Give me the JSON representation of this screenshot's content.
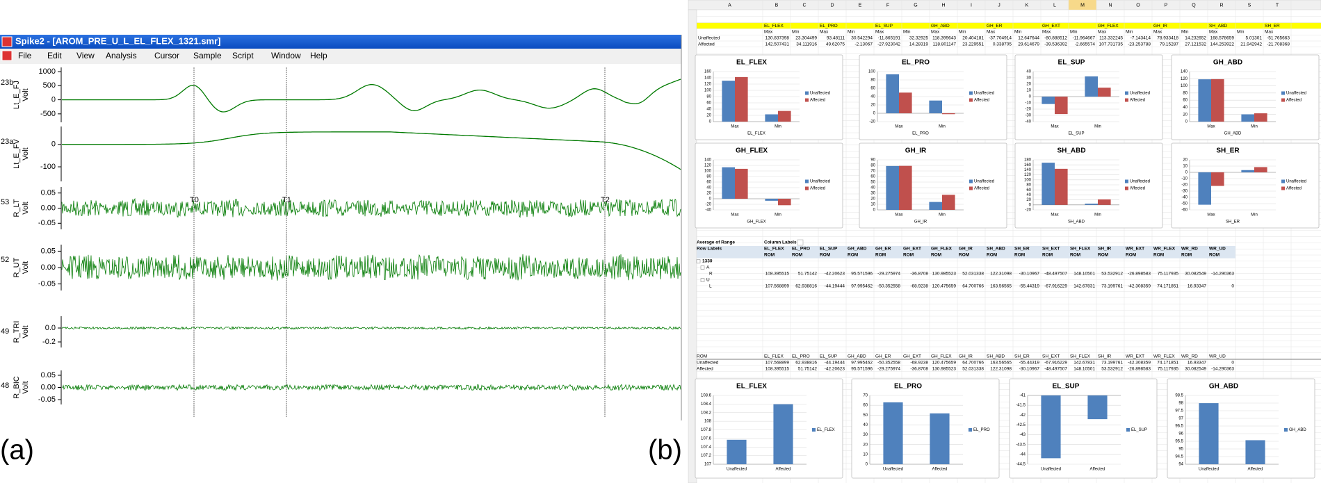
{
  "panels": [
    "(a)",
    "(b)"
  ],
  "spike": {
    "title": "Spike2 - [AROM_PRE_U_L_EL_FLEX_1321.smr]",
    "menu": [
      "File",
      "Edit",
      "View",
      "Analysis",
      "Cursor",
      "Sample",
      "Script",
      "Window",
      "Help"
    ],
    "cursors": [
      "T0",
      "T1",
      "T2"
    ],
    "channels": [
      {
        "id": "23b",
        "name": "Lt_E_FJ",
        "unit": "Volt",
        "ylim": [
          -800,
          1150
        ],
        "yticks": [
          1000,
          500,
          0,
          -500
        ]
      },
      {
        "id": "23a",
        "name": "Lt_E_FV",
        "unit": "Volt",
        "ylim": [
          -165,
          80
        ],
        "yticks": [
          0,
          -100
        ]
      },
      {
        "id": "53",
        "name": "R_LT",
        "unit": "Volt",
        "ylim": [
          -0.07,
          0.07
        ],
        "yticks": [
          0.05,
          {
            "value": 0,
            "label": "0.00"
          },
          -0.05
        ]
      },
      {
        "id": "52",
        "name": "R_UT",
        "unit": "Volt",
        "ylim": [
          -0.07,
          0.07
        ],
        "yticks": [
          0.05,
          {
            "value": 0,
            "label": "0.00"
          },
          -0.05
        ]
      },
      {
        "id": "49",
        "name": "R_TRI",
        "unit": "Volt",
        "ylim": [
          -0.28,
          0.17
        ],
        "yticks": [
          {
            "value": 0,
            "label": "0.0"
          },
          -0.2
        ]
      },
      {
        "id": "48",
        "name": "R_BIC",
        "unit": "Volt",
        "ylim": [
          -0.07,
          0.07
        ],
        "yticks": [
          0.05,
          {
            "value": 0,
            "label": "0.00"
          },
          -0.05
        ]
      }
    ]
  },
  "sheet": {
    "columns": [
      "A",
      "B",
      "C",
      "D",
      "E",
      "F",
      "G",
      "H",
      "I",
      "J",
      "K",
      "L",
      "M",
      "N",
      "O",
      "P",
      "Q",
      "R",
      "S",
      "T"
    ],
    "row_numbers": [
      2,
      3,
      4,
      5,
      6,
      7,
      8,
      9,
      10,
      11,
      12,
      13,
      14,
      15,
      16,
      17,
      18,
      19,
      20,
      21,
      22,
      23,
      24,
      25,
      26,
      27,
      28,
      29,
      30,
      31,
      32,
      33,
      34,
      35,
      36,
      37,
      38,
      39,
      40,
      41,
      42,
      43,
      44,
      45,
      46,
      47,
      48,
      49,
      50,
      51,
      52,
      53,
      54,
      55,
      56,
      57,
      58,
      59,
      60,
      61,
      62,
      63,
      64,
      65,
      66,
      67,
      68,
      69,
      70,
      71,
      72,
      73,
      74,
      75,
      76
    ],
    "table": {
      "headers": [
        "EL_FLEX",
        "EL_PRO",
        "EL_SUP",
        "GH_ABD",
        "GH_ER",
        "GH_EXT",
        "GH_FLEX",
        "GH_IR",
        "SH_ABD",
        "SH_ER"
      ],
      "subheaders": [
        "Max",
        "Min",
        "Max",
        "Min",
        "Max",
        "Min",
        "Max",
        "Min",
        "Max",
        "Min",
        "Max",
        "Min",
        "Max",
        "Min",
        "Max",
        "Min",
        "Max",
        "Min",
        "Max"
      ],
      "rows": [
        {
          "label": "Unaffected",
          "values": [
            130.837398,
            23.304499,
            93.48111,
            30.542294,
            -11.865191,
            32.32925,
            118.399643,
            20.404181,
            -37.704914,
            12.647644,
            -80.888512,
            -11.964667,
            113.332245,
            -7.143414,
            78.933418,
            14.232652,
            168.578659,
            5.01301,
            -51.765663
          ]
        },
        {
          "label": "Affected",
          "values": [
            142.507431,
            34.111916,
            49.62075,
            -2.13067,
            -27.923042,
            14.28319,
            118.801147,
            23.229551,
            0.338705,
            29.614679,
            -39.536392,
            -2.665574,
            107.731735,
            -23.253788,
            79.15287,
            27.121532,
            144.253922,
            21.942942,
            -21.708368
          ]
        }
      ]
    },
    "top_charts": [
      {
        "type": "bar",
        "title": "EL_FLEX",
        "xlabel": "EL_FLEX",
        "categories": [
          "Max",
          "Min"
        ],
        "ylim": [
          0,
          160
        ],
        "yticks": [
          0,
          20,
          40,
          60,
          80,
          100,
          120,
          140,
          160
        ],
        "series": [
          {
            "name": "Unaffected",
            "color": "#4f81bd",
            "values": [
              130.837398,
              23.304499
            ]
          },
          {
            "name": "Affected",
            "color": "#c0504d",
            "values": [
              142.507431,
              34.111916
            ]
          }
        ]
      },
      {
        "type": "bar",
        "title": "EL_PRO",
        "xlabel": "EL_PRO",
        "categories": [
          "Max",
          "Min"
        ],
        "ylim": [
          -20,
          100
        ],
        "yticks": [
          -20,
          0,
          20,
          40,
          60,
          80,
          100
        ],
        "series": [
          {
            "name": "Unaffected",
            "color": "#4f81bd",
            "values": [
              93.48111,
              30.542294
            ]
          },
          {
            "name": "Affected",
            "color": "#c0504d",
            "values": [
              49.62075,
              -2.13067
            ]
          }
        ]
      },
      {
        "type": "bar",
        "title": "EL_SUP",
        "xlabel": "EL_SUP",
        "categories": [
          "Max",
          "Min"
        ],
        "ylim": [
          -40,
          40
        ],
        "yticks": [
          -40,
          -30,
          -20,
          -10,
          0,
          10,
          20,
          30,
          40
        ],
        "series": [
          {
            "name": "Unaffected",
            "color": "#4f81bd",
            "values": [
              -11.865191,
              32.32925
            ]
          },
          {
            "name": "Affected",
            "color": "#c0504d",
            "values": [
              -27.923042,
              14.28319
            ]
          }
        ]
      },
      {
        "type": "bar",
        "title": "GH_ABD",
        "xlabel": "GH_ABD",
        "categories": [
          "Max",
          "Min"
        ],
        "ylim": [
          0,
          140
        ],
        "yticks": [
          0,
          20,
          40,
          60,
          80,
          100,
          120,
          140
        ],
        "series": [
          {
            "name": "Unaffected",
            "color": "#4f81bd",
            "values": [
              118.399643,
              20.404181
            ]
          },
          {
            "name": "Affected",
            "color": "#c0504d",
            "values": [
              118.801147,
              23.229551
            ]
          }
        ]
      },
      {
        "type": "bar",
        "title": "GH_FLEX",
        "xlabel": "GH_FLEX",
        "categories": [
          "Max",
          "Min"
        ],
        "ylim": [
          -40,
          140
        ],
        "yticks": [
          -40,
          -20,
          0,
          20,
          40,
          60,
          80,
          100,
          120,
          140
        ],
        "series": [
          {
            "name": "Unaffected",
            "color": "#4f81bd",
            "values": [
              113.332245,
              -7.143414
            ]
          },
          {
            "name": "Affected",
            "color": "#c0504d",
            "values": [
              107.731735,
              -23.253788
            ]
          }
        ]
      },
      {
        "type": "bar",
        "title": "GH_IR",
        "xlabel": "GH_IR",
        "categories": [
          "Max",
          "Min"
        ],
        "ylim": [
          0,
          90
        ],
        "yticks": [
          0,
          10,
          20,
          30,
          40,
          50,
          60,
          70,
          80,
          90
        ],
        "series": [
          {
            "name": "Unaffected",
            "color": "#4f81bd",
            "values": [
              78.933418,
              14.232652
            ]
          },
          {
            "name": "Affected",
            "color": "#c0504d",
            "values": [
              79.15287,
              27.121532
            ]
          }
        ]
      },
      {
        "type": "bar",
        "title": "SH_ABD",
        "xlabel": "SH_ABD",
        "categories": [
          "Max",
          "Min"
        ],
        "ylim": [
          -20,
          180
        ],
        "yticks": [
          -20,
          0,
          20,
          40,
          60,
          80,
          100,
          120,
          140,
          160,
          180
        ],
        "series": [
          {
            "name": "Unaffected",
            "color": "#4f81bd",
            "values": [
              168.578659,
              5.01301
            ]
          },
          {
            "name": "Affected",
            "color": "#c0504d",
            "values": [
              144.253922,
              21.942942
            ]
          }
        ]
      },
      {
        "type": "bar",
        "title": "SH_ER",
        "xlabel": "SH_ER",
        "categories": [
          "Max",
          "Min"
        ],
        "ylim": [
          -60,
          20
        ],
        "yticks": [
          -60,
          -50,
          -40,
          -30,
          -20,
          -10,
          0,
          10,
          20
        ],
        "series": [
          {
            "name": "Unaffected",
            "color": "#4f81bd",
            "values": [
              -51.765663,
              3.6
            ]
          },
          {
            "name": "Affected",
            "color": "#c0504d",
            "values": [
              -21.708368,
              8.4
            ]
          }
        ]
      }
    ],
    "pivot": {
      "title": "Average of Range",
      "col_label": "Column Labels",
      "row_label": "Row Labels",
      "measure": "ROM",
      "columns": [
        "EL_FLEX",
        "EL_PRO",
        "EL_SUP",
        "GH_ABD",
        "GH_ER",
        "GH_EXT",
        "GH_FLEX",
        "GH_IR",
        "SH_ABD",
        "SH_ER",
        "SH_EXT",
        "SH_FLEX",
        "SH_IR",
        "WR_EXT",
        "WR_FLEX",
        "WR_RD",
        "WR_UD"
      ],
      "rows": [
        {
          "label": "1330"
        },
        {
          "label": "A"
        },
        {
          "label": "R",
          "values": [
            108.395515,
            51.75142,
            -42.20623,
            95.571596,
            -29.275974,
            -36.8708,
            130.985523,
            52.031338,
            122.31098,
            -30.10967,
            -48.497507,
            148.10501,
            53.532912,
            -26.898583,
            75.117935,
            30.082549,
            -14.290363
          ]
        },
        {
          "label": "U"
        },
        {
          "label": "L",
          "values": [
            107.568899,
            62.938816,
            -44.19444,
            97.995462,
            -50.352558,
            -68.9238,
            120.475659,
            64.700766,
            163.56565,
            -55.44319,
            -67.916229,
            142.67831,
            73.199761,
            -42.308359,
            74.171851,
            16.93347,
            0
          ]
        }
      ]
    },
    "rom": {
      "label": "ROM",
      "columns": [
        "EL_FLEX",
        "EL_PRO",
        "EL_SUP",
        "GH_ABD",
        "GH_ER",
        "GH_EXT",
        "GH_FLEX",
        "GH_IR",
        "SH_ABD",
        "SH_ER",
        "SH_EXT",
        "SH_FLEX",
        "SH_IR",
        "WR_EXT",
        "WR_FLEX",
        "WR_RD",
        "WR_UD"
      ],
      "rows": [
        {
          "label": "Unaffected",
          "values": [
            107.568899,
            62.938816,
            -44.19444,
            97.995462,
            -50.352558,
            -68.9238,
            120.475659,
            64.700766,
            163.56565,
            -55.44319,
            -67.916229,
            142.67831,
            73.199761,
            -42.308359,
            74.171851,
            16.93347,
            0
          ]
        },
        {
          "label": "Affected",
          "values": [
            108.395515,
            51.75142,
            -42.20623,
            95.571596,
            -29.275974,
            -36.8708,
            130.985523,
            52.031338,
            122.31098,
            -30.10967,
            -48.497507,
            148.10501,
            53.532912,
            -26.898583,
            75.117935,
            30.082549,
            -14.290363
          ]
        }
      ]
    },
    "bottom_charts": [
      {
        "type": "bar",
        "title": "EL_FLEX",
        "categories": [
          "Unaffected",
          "Affected"
        ],
        "ylim": [
          107,
          108.6
        ],
        "yticks": [
          107,
          107.2,
          107.4,
          107.6,
          107.8,
          108,
          108.2,
          108.4,
          108.6
        ],
        "series": [
          {
            "name": "EL_FLEX",
            "color": "#4f81bd",
            "values": [
              107.568899,
              108.395515
            ]
          }
        ]
      },
      {
        "type": "bar",
        "title": "EL_PRO",
        "categories": [
          "Unaffected",
          "Affected"
        ],
        "ylim": [
          0,
          70
        ],
        "yticks": [
          0,
          10,
          20,
          30,
          40,
          50,
          60,
          70
        ],
        "series": [
          {
            "name": "EL_PRO",
            "color": "#4f81bd",
            "values": [
              62.938816,
              51.75142
            ]
          }
        ]
      },
      {
        "type": "bar",
        "title": "EL_SUP",
        "categories": [
          "Unaffected",
          "Affected"
        ],
        "ylim": [
          -44.5,
          -41
        ],
        "yticks": [
          -44.5,
          -44,
          -43.5,
          -43,
          -42.5,
          -42,
          -41.5,
          -41
        ],
        "series": [
          {
            "name": "EL_SUP",
            "color": "#4f81bd",
            "values": [
              -44.19444,
              -42.20623
            ]
          }
        ]
      },
      {
        "type": "bar",
        "title": "GH_ABD",
        "categories": [
          "Unaffected",
          "Affected"
        ],
        "ylim": [
          94,
          98.5
        ],
        "yticks": [
          94,
          94.5,
          95,
          95.5,
          96,
          96.5,
          97,
          97.5,
          98,
          98.5
        ],
        "series": [
          {
            "name": "GH_ABD",
            "color": "#4f81bd",
            "values": [
              97.995462,
              95.571596
            ]
          }
        ]
      }
    ]
  }
}
